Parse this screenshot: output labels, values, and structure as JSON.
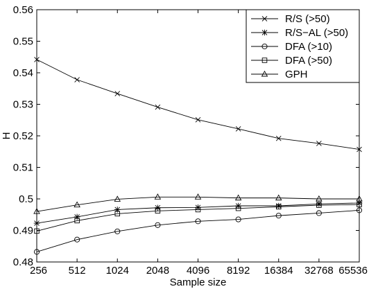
{
  "chart_data": {
    "type": "line",
    "title": "",
    "xlabel": "Sample size",
    "ylabel": "H",
    "x": [
      256,
      512,
      1024,
      2048,
      4096,
      8192,
      16384,
      32768,
      65536
    ],
    "x_tick_labels": [
      "256",
      "512",
      "1024",
      "2048",
      "4096",
      "8192",
      "16384",
      "32768",
      "65536"
    ],
    "x_scale": "log2",
    "ylim": [
      0.48,
      0.56
    ],
    "y_ticks": [
      0.48,
      0.49,
      0.5,
      0.51,
      0.52,
      0.53,
      0.54,
      0.55,
      0.56
    ],
    "y_tick_labels": [
      "0.48",
      "0.49",
      "0.5",
      "0.51",
      "0.52",
      "0.53",
      "0.54",
      "0.55",
      "0.56"
    ],
    "grid": false,
    "legend_position": "top-right",
    "series": [
      {
        "name": "R/S (>50)",
        "marker": "x",
        "values": [
          0.5442,
          0.5378,
          0.5334,
          0.5291,
          0.5251,
          0.5222,
          0.5192,
          0.5176,
          0.5157
        ]
      },
      {
        "name": "R/S−AL (>50)",
        "marker": "asterisk",
        "values": [
          0.4923,
          0.4943,
          0.4966,
          0.4972,
          0.4973,
          0.4978,
          0.4978,
          0.4984,
          0.4987
        ]
      },
      {
        "name": "DFA (>10)",
        "marker": "circle",
        "values": [
          0.4832,
          0.4871,
          0.4897,
          0.4917,
          0.4929,
          0.4935,
          0.4947,
          0.4955,
          0.4964
        ]
      },
      {
        "name": "DFA (>50)",
        "marker": "square",
        "values": [
          0.4898,
          0.4931,
          0.4953,
          0.4962,
          0.4966,
          0.497,
          0.4975,
          0.498,
          0.4982
        ]
      },
      {
        "name": "GPH",
        "marker": "triangle",
        "values": [
          0.496,
          0.4981,
          0.4999,
          0.5006,
          0.5006,
          0.5003,
          0.5003,
          0.5,
          0.5
        ]
      }
    ]
  }
}
